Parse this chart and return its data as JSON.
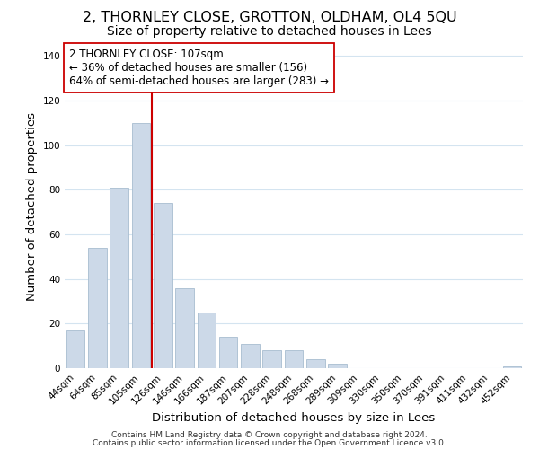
{
  "title": "2, THORNLEY CLOSE, GROTTON, OLDHAM, OL4 5QU",
  "subtitle": "Size of property relative to detached houses in Lees",
  "xlabel": "Distribution of detached houses by size in Lees",
  "ylabel": "Number of detached properties",
  "bar_color": "#ccd9e8",
  "bar_edge_color": "#a8bdd0",
  "categories": [
    "44sqm",
    "64sqm",
    "85sqm",
    "105sqm",
    "126sqm",
    "146sqm",
    "166sqm",
    "187sqm",
    "207sqm",
    "228sqm",
    "248sqm",
    "268sqm",
    "289sqm",
    "309sqm",
    "330sqm",
    "350sqm",
    "370sqm",
    "391sqm",
    "411sqm",
    "432sqm",
    "452sqm"
  ],
  "values": [
    17,
    54,
    81,
    110,
    74,
    36,
    25,
    14,
    11,
    8,
    8,
    4,
    2,
    0,
    0,
    0,
    0,
    0,
    0,
    0,
    1
  ],
  "ylim": [
    0,
    145
  ],
  "yticks": [
    0,
    20,
    40,
    60,
    80,
    100,
    120,
    140
  ],
  "ref_line_index": 3,
  "ref_line_color": "#cc0000",
  "annotation_text": "2 THORNLEY CLOSE: 107sqm\n← 36% of detached houses are smaller (156)\n64% of semi-detached houses are larger (283) →",
  "annotation_box_edge": "#cc0000",
  "footer_line1": "Contains HM Land Registry data © Crown copyright and database right 2024.",
  "footer_line2": "Contains public sector information licensed under the Open Government Licence v3.0.",
  "background_color": "#ffffff",
  "grid_color": "#d4e4f0",
  "title_fontsize": 11.5,
  "subtitle_fontsize": 10,
  "axis_label_fontsize": 9.5,
  "tick_fontsize": 7.5,
  "annotation_fontsize": 8.5,
  "footer_fontsize": 6.5
}
